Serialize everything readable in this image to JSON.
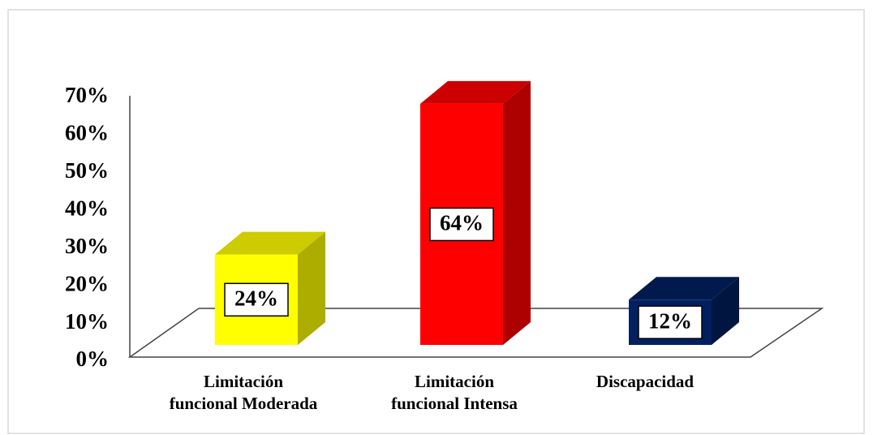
{
  "chart_data": {
    "type": "bar3d",
    "categories": [
      "Limitación funcional Moderada",
      "Limitación funcional Intensa",
      "Discapacidad"
    ],
    "values": [
      24,
      64,
      12
    ],
    "value_labels": [
      "24%",
      "64%",
      "12%"
    ],
    "colors": [
      "#ffff00",
      "#ff0000",
      "#002060"
    ],
    "ylim": [
      0,
      70
    ],
    "yticks": [
      {
        "value": 0,
        "label": "0%"
      },
      {
        "value": 10,
        "label": "10%"
      },
      {
        "value": 20,
        "label": "20%"
      },
      {
        "value": 30,
        "label": "30%"
      },
      {
        "value": 40,
        "label": "40%"
      },
      {
        "value": 50,
        "label": "50%"
      },
      {
        "value": 60,
        "label": "60%"
      },
      {
        "value": 70,
        "label": "70%"
      }
    ],
    "grid": false
  }
}
